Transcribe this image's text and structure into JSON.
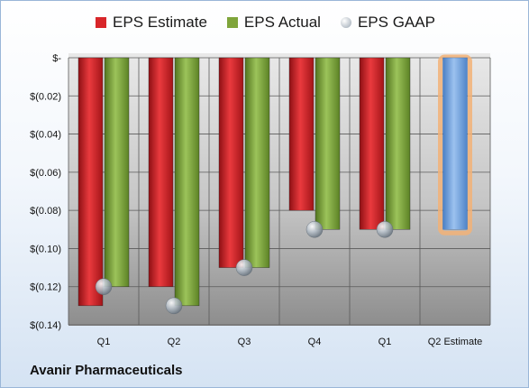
{
  "footer": {
    "company": "Avanir Pharmaceuticals"
  },
  "legend": [
    {
      "label": "EPS Estimate",
      "color": "#d8262a",
      "shape": "square"
    },
    {
      "label": "EPS Actual",
      "color": "#7fa53b",
      "shape": "square"
    },
    {
      "label": "EPS GAAP",
      "color": "#b9c3cc",
      "shape": "circle"
    }
  ],
  "chart_data": {
    "type": "bar",
    "categories": [
      "Q1",
      "Q2",
      "Q3",
      "Q4",
      "Q1",
      "Q2 Estimate"
    ],
    "series": [
      {
        "name": "EPS Estimate",
        "color": "#d8262a",
        "values": [
          -0.13,
          -0.12,
          -0.11,
          -0.08,
          -0.09,
          null
        ]
      },
      {
        "name": "EPS Actual",
        "color": "#7fa53b",
        "values": [
          -0.12,
          -0.13,
          -0.11,
          -0.09,
          -0.09,
          null
        ]
      },
      {
        "name": "EPS GAAP",
        "color": "#b9c3cc",
        "type": "scatter",
        "values": [
          -0.12,
          -0.13,
          -0.11,
          -0.09,
          -0.09,
          null
        ]
      }
    ],
    "highlight": {
      "category": "Q2 Estimate",
      "value": -0.09,
      "color": "#6fa2de",
      "glow": "#f2b277"
    },
    "ylim": [
      -0.14,
      0
    ],
    "yticks": [
      0,
      -0.02,
      -0.04,
      -0.06,
      -0.08,
      -0.1,
      -0.12,
      -0.14
    ],
    "ytick_labels": [
      "$-",
      "$(0.02)",
      "$(0.04)",
      "$(0.06)",
      "$(0.08)",
      "$(0.10)",
      "$(0.12)",
      "$(0.14)"
    ],
    "grid": true,
    "legend_position": "top"
  }
}
